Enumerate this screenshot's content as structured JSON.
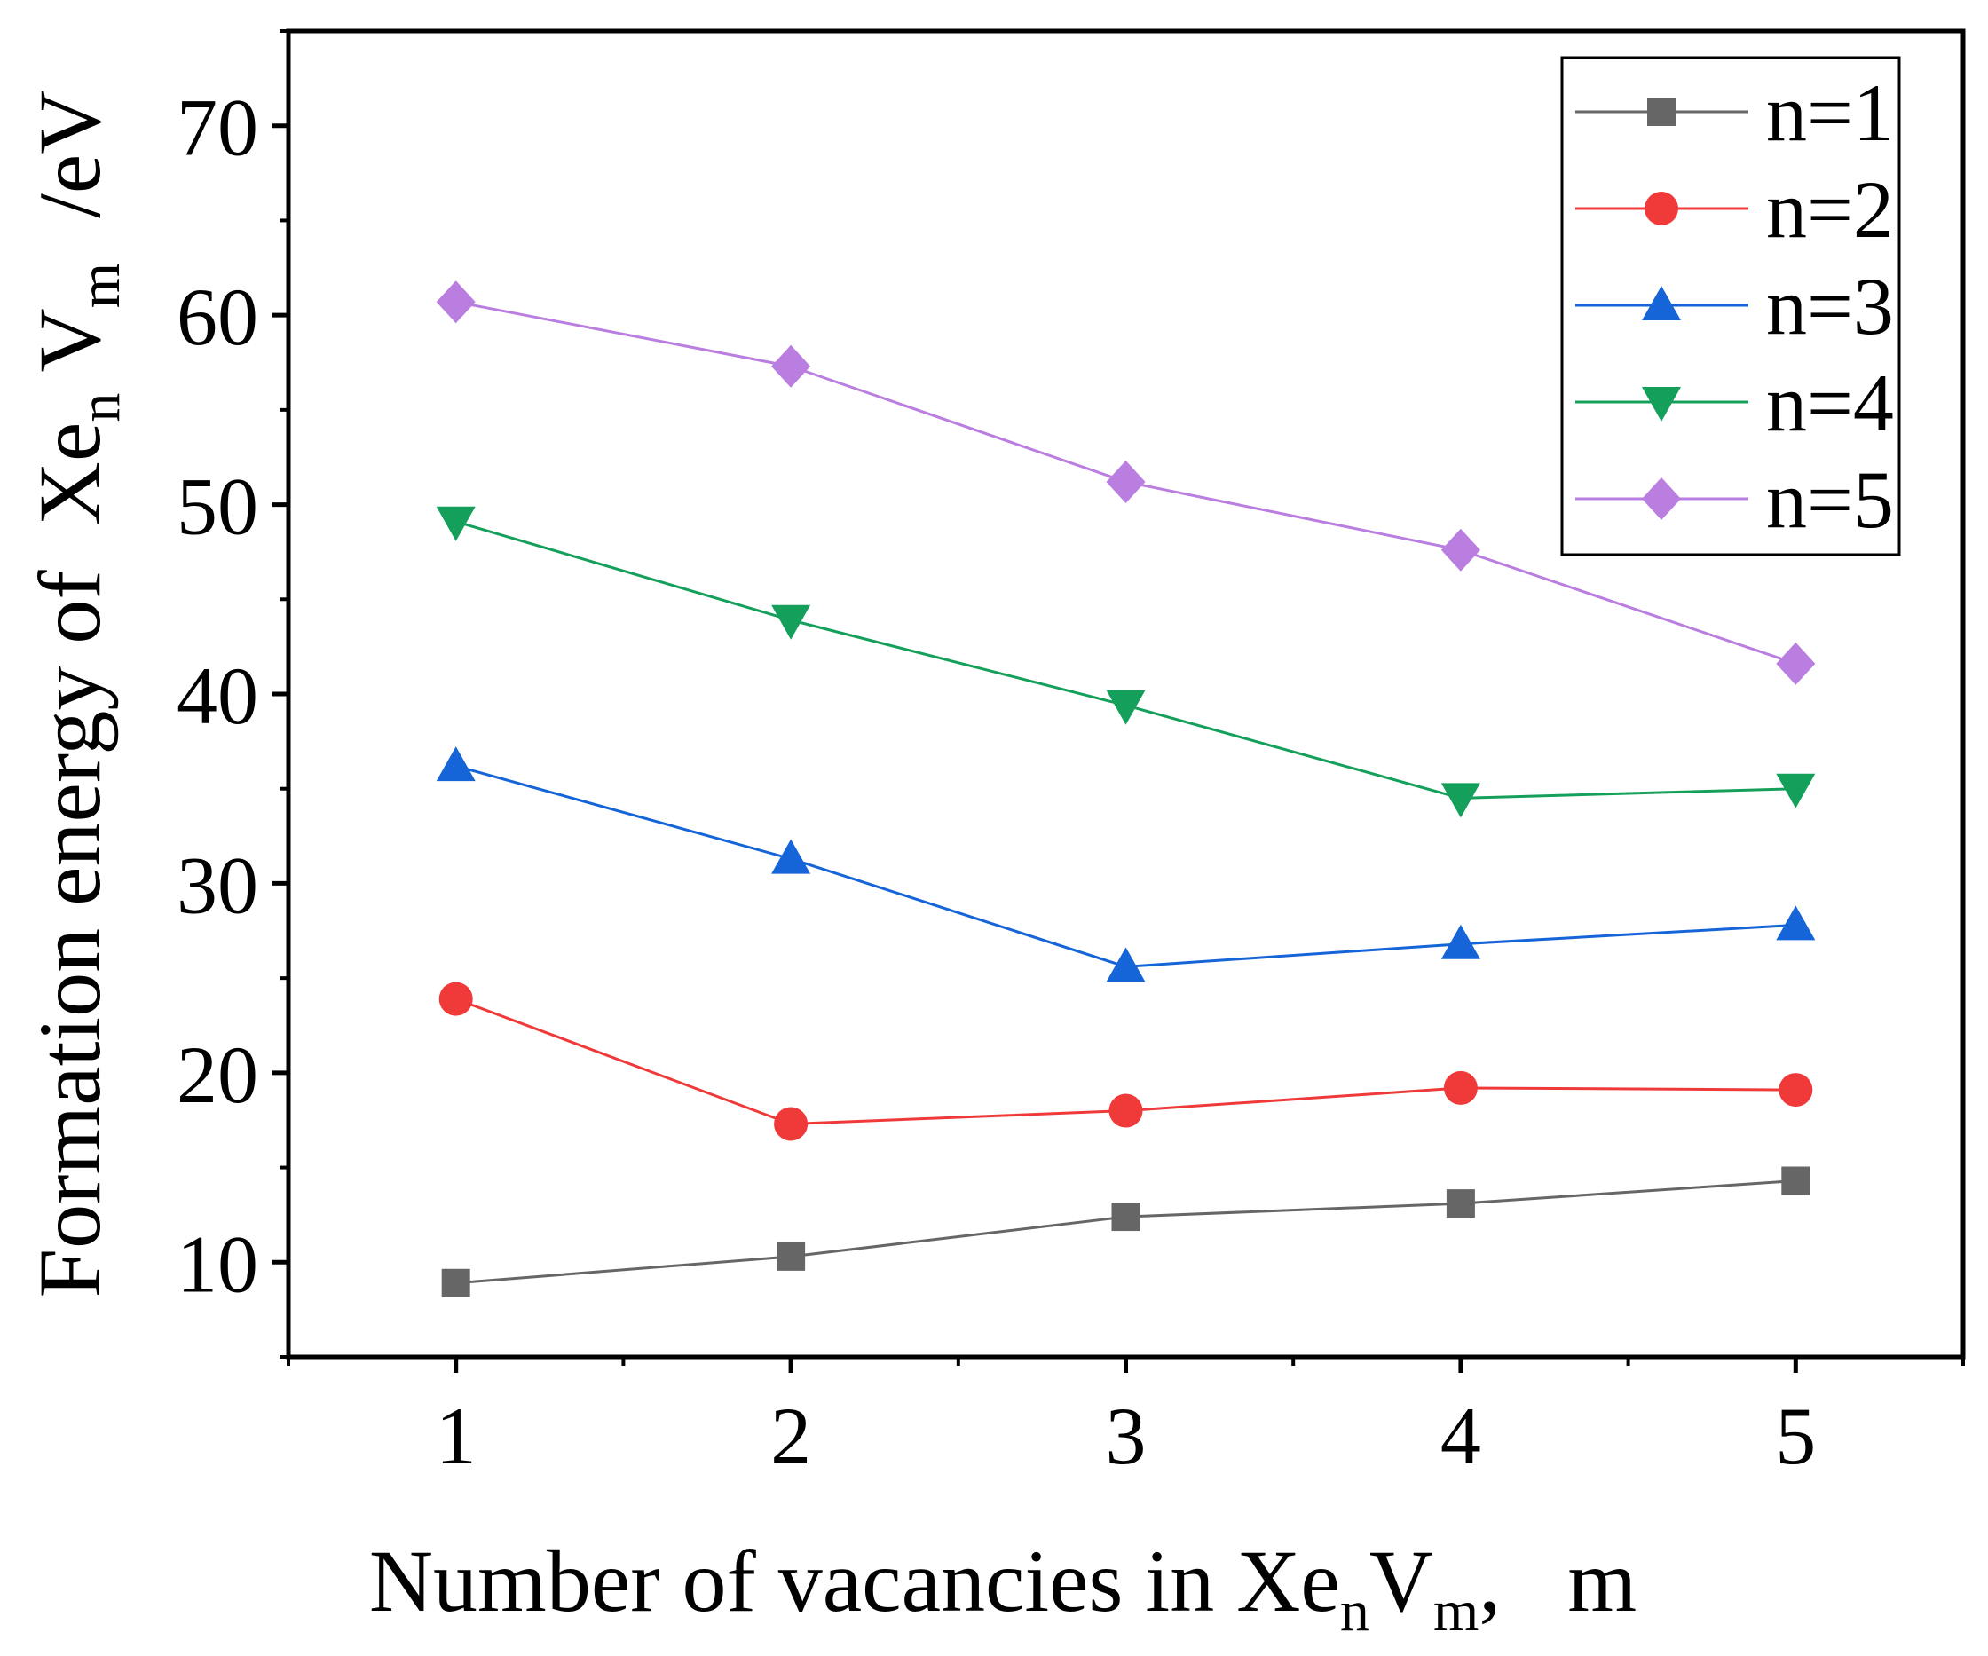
{
  "chart_data": {
    "type": "line",
    "x": [
      1,
      2,
      3,
      4,
      5
    ],
    "xlim": [
      0.5,
      5.5
    ],
    "ylim": [
      5,
      75
    ],
    "xticks": [
      1,
      2,
      3,
      4,
      5
    ],
    "yticks": [
      10,
      20,
      30,
      40,
      50,
      60,
      70
    ],
    "xlabel": {
      "prefix": "Number of vacancies in Xe",
      "sub1": "n",
      "mid": "V",
      "sub2": "m",
      "suffix": ",   m"
    },
    "ylabel": {
      "prefix": "Formation energy of  Xe",
      "sub1": "n",
      "mid": " V",
      "sub2": "m",
      "suffix": "  /eV"
    },
    "legend_position": "top-right",
    "series": [
      {
        "name": "n=1",
        "marker": "square",
        "color": "#666666",
        "values": [
          8.9,
          10.3,
          12.4,
          13.1,
          14.3
        ]
      },
      {
        "name": "n=2",
        "marker": "circle",
        "color": "#f03a3a",
        "values": [
          23.9,
          17.3,
          18.0,
          19.2,
          19.1
        ]
      },
      {
        "name": "n=3",
        "marker": "triangle-up",
        "color": "#1565d8",
        "values": [
          36.2,
          31.3,
          25.6,
          26.8,
          27.8
        ]
      },
      {
        "name": "n=4",
        "marker": "triangle-down",
        "color": "#14a05a",
        "values": [
          49.1,
          43.9,
          39.4,
          34.5,
          35.0
        ]
      },
      {
        "name": "n=5",
        "marker": "diamond",
        "color": "#b97ee0",
        "values": [
          60.7,
          57.3,
          51.2,
          47.6,
          41.6
        ]
      }
    ]
  }
}
